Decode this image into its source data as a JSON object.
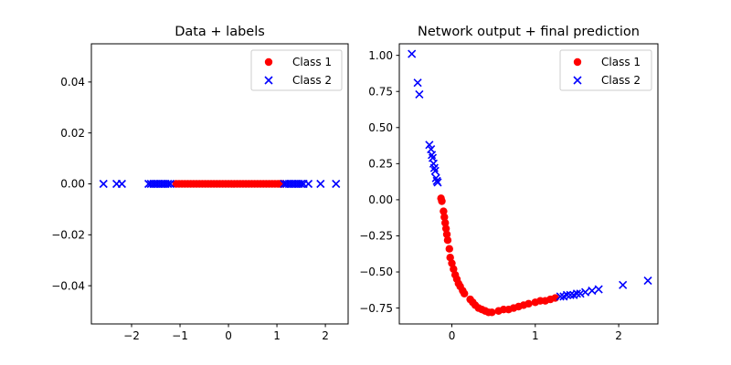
{
  "chart_data": [
    {
      "type": "scatter",
      "title": "Data + labels",
      "xlabel": "",
      "ylabel": "",
      "xlim": [
        -2.83,
        2.47
      ],
      "ylim": [
        -0.055,
        0.055
      ],
      "xticks": [
        -2,
        -1,
        0,
        1,
        2
      ],
      "xtick_labels": [
        "−2",
        "−1",
        "0",
        "1",
        "2"
      ],
      "yticks": [
        -0.04,
        -0.02,
        0.0,
        0.02,
        0.04
      ],
      "ytick_labels": [
        "−0.04",
        "−0.02",
        "0.00",
        "0.02",
        "0.04"
      ],
      "legend": {
        "position": "top-right",
        "entries": [
          "Class 1",
          "Class 2"
        ]
      },
      "series": [
        {
          "name": "Class 1",
          "marker": "circle",
          "color": "#ff0000",
          "points": [
            [
              -1.08,
              0
            ],
            [
              -1.02,
              0
            ],
            [
              -0.96,
              0
            ],
            [
              -0.9,
              0
            ],
            [
              -0.84,
              0
            ],
            [
              -0.78,
              0
            ],
            [
              -0.72,
              0
            ],
            [
              -0.66,
              0
            ],
            [
              -0.6,
              0
            ],
            [
              -0.54,
              0
            ],
            [
              -0.48,
              0
            ],
            [
              -0.42,
              0
            ],
            [
              -0.36,
              0
            ],
            [
              -0.3,
              0
            ],
            [
              -0.24,
              0
            ],
            [
              -0.18,
              0
            ],
            [
              -0.12,
              0
            ],
            [
              -0.06,
              0
            ],
            [
              0.0,
              0
            ],
            [
              0.06,
              0
            ],
            [
              0.12,
              0
            ],
            [
              0.18,
              0
            ],
            [
              0.24,
              0
            ],
            [
              0.3,
              0
            ],
            [
              0.36,
              0
            ],
            [
              0.42,
              0
            ],
            [
              0.48,
              0
            ],
            [
              0.54,
              0
            ],
            [
              0.6,
              0
            ],
            [
              0.66,
              0
            ],
            [
              0.72,
              0
            ],
            [
              0.78,
              0
            ],
            [
              0.84,
              0
            ],
            [
              0.9,
              0
            ],
            [
              0.96,
              0
            ],
            [
              1.02,
              0
            ],
            [
              1.06,
              0
            ],
            [
              1.1,
              0
            ]
          ]
        },
        {
          "name": "Class 2",
          "marker": "x",
          "color": "#0000ff",
          "points": [
            [
              -2.58,
              0
            ],
            [
              -2.31,
              0
            ],
            [
              -2.2,
              0
            ],
            [
              -1.65,
              0
            ],
            [
              -1.6,
              0
            ],
            [
              -1.55,
              0
            ],
            [
              -1.5,
              0
            ],
            [
              -1.45,
              0
            ],
            [
              -1.4,
              0
            ],
            [
              -1.35,
              0
            ],
            [
              -1.3,
              0
            ],
            [
              -1.25,
              0
            ],
            [
              -1.2,
              0
            ],
            [
              1.15,
              0
            ],
            [
              1.2,
              0
            ],
            [
              1.25,
              0
            ],
            [
              1.3,
              0
            ],
            [
              1.35,
              0
            ],
            [
              1.4,
              0
            ],
            [
              1.45,
              0
            ],
            [
              1.5,
              0
            ],
            [
              1.55,
              0
            ],
            [
              1.65,
              0
            ],
            [
              1.9,
              0
            ],
            [
              2.22,
              0
            ]
          ]
        }
      ]
    },
    {
      "type": "scatter",
      "title": "Network output + final prediction",
      "xlabel": "",
      "ylabel": "",
      "xlim": [
        -0.63,
        2.47
      ],
      "ylim": [
        -0.86,
        1.08
      ],
      "xticks": [
        0,
        1,
        2
      ],
      "xtick_labels": [
        "0",
        "1",
        "2"
      ],
      "yticks": [
        -0.75,
        -0.5,
        -0.25,
        0.0,
        0.25,
        0.5,
        0.75,
        1.0
      ],
      "ytick_labels": [
        "−0.75",
        "−0.50",
        "−0.25",
        "0.00",
        "0.25",
        "0.50",
        "0.75",
        "1.00"
      ],
      "legend": {
        "position": "top-right",
        "entries": [
          "Class 1",
          "Class 2"
        ]
      },
      "series": [
        {
          "name": "Class 1",
          "marker": "circle",
          "color": "#ff0000",
          "points": [
            [
              -0.13,
              0.01
            ],
            [
              -0.12,
              -0.01
            ],
            [
              -0.1,
              -0.08
            ],
            [
              -0.09,
              -0.12
            ],
            [
              -0.08,
              -0.16
            ],
            [
              -0.07,
              -0.2
            ],
            [
              -0.06,
              -0.24
            ],
            [
              -0.05,
              -0.28
            ],
            [
              -0.03,
              -0.34
            ],
            [
              -0.02,
              -0.4
            ],
            [
              0.0,
              -0.44
            ],
            [
              0.02,
              -0.48
            ],
            [
              0.04,
              -0.52
            ],
            [
              0.06,
              -0.55
            ],
            [
              0.08,
              -0.58
            ],
            [
              0.1,
              -0.6
            ],
            [
              0.13,
              -0.63
            ],
            [
              0.15,
              -0.65
            ],
            [
              0.22,
              -0.69
            ],
            [
              0.25,
              -0.71
            ],
            [
              0.28,
              -0.73
            ],
            [
              0.32,
              -0.75
            ],
            [
              0.36,
              -0.76
            ],
            [
              0.4,
              -0.77
            ],
            [
              0.44,
              -0.78
            ],
            [
              0.48,
              -0.78
            ],
            [
              0.56,
              -0.77
            ],
            [
              0.62,
              -0.76
            ],
            [
              0.68,
              -0.76
            ],
            [
              0.74,
              -0.75
            ],
            [
              0.8,
              -0.74
            ],
            [
              0.86,
              -0.73
            ],
            [
              0.92,
              -0.72
            ],
            [
              1.0,
              -0.71
            ],
            [
              1.06,
              -0.7
            ],
            [
              1.12,
              -0.7
            ],
            [
              1.18,
              -0.69
            ],
            [
              1.24,
              -0.68
            ]
          ]
        },
        {
          "name": "Class 2",
          "marker": "x",
          "color": "#0000ff",
          "points": [
            [
              -0.48,
              1.01
            ],
            [
              -0.41,
              0.81
            ],
            [
              -0.39,
              0.73
            ],
            [
              -0.27,
              0.38
            ],
            [
              -0.25,
              0.35
            ],
            [
              -0.24,
              0.31
            ],
            [
              -0.23,
              0.29
            ],
            [
              -0.22,
              0.25
            ],
            [
              -0.21,
              0.22
            ],
            [
              -0.2,
              0.2
            ],
            [
              -0.19,
              0.15
            ],
            [
              -0.18,
              0.13
            ],
            [
              -0.17,
              0.12
            ],
            [
              1.3,
              -0.67
            ],
            [
              1.34,
              -0.67
            ],
            [
              1.38,
              -0.66
            ],
            [
              1.42,
              -0.66
            ],
            [
              1.46,
              -0.66
            ],
            [
              1.5,
              -0.65
            ],
            [
              1.54,
              -0.65
            ],
            [
              1.6,
              -0.64
            ],
            [
              1.68,
              -0.63
            ],
            [
              1.76,
              -0.62
            ],
            [
              2.05,
              -0.59
            ],
            [
              2.35,
              -0.56
            ]
          ]
        }
      ]
    }
  ]
}
